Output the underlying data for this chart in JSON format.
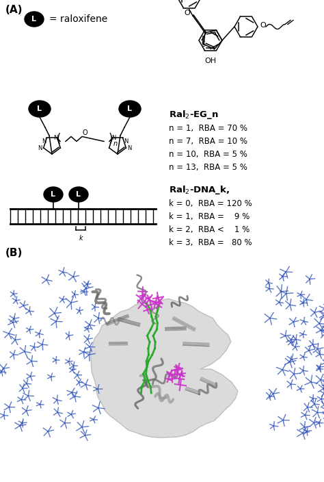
{
  "panel_A_label": "(A)",
  "panel_B_label": "(B)",
  "eq_raloxifene": "= raloxifene",
  "ral2_eg_title": "Ral$_2$-EG_n",
  "ral2_eg_data": [
    "n = 1,  RBA = 70 %",
    "n = 7,  RBA = 10 %",
    "n = 10,  RBA = 5 %",
    "n = 13,  RBA = 5 %"
  ],
  "ral2_dna_title": "Ral$_2$-DNA_k,",
  "ral2_dna_data": [
    "k = 0,  RBA = 120 %",
    "k = 1,  RBA =    9 %",
    "k = 2,  RBA <    1 %",
    "k = 3,  RBA =   80 %"
  ],
  "bg_color": "#ffffff",
  "text_color": "#000000"
}
